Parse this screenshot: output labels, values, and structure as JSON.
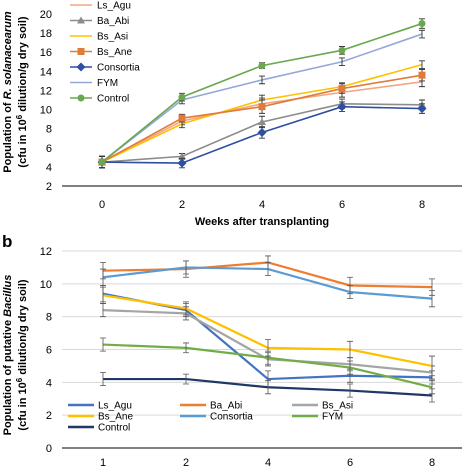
{
  "chart_data": [
    {
      "type": "line",
      "panel": "",
      "xlabel": "Weeks after transplanting",
      "ylabel_line1_pre": "Population of ",
      "ylabel_line1_ital": "R. solanacearum",
      "ylabel_line2_pre": "(cfu in 10",
      "ylabel_line2_sup": "6",
      "ylabel_line2_post": " dilution/g dry soil)",
      "x": [
        0,
        2,
        4,
        6,
        8
      ],
      "xticks": [
        "0",
        "2",
        "4",
        "6",
        "8"
      ],
      "xlim": [
        -1,
        9
      ],
      "ylim": [
        2,
        20
      ],
      "yticks": [
        "2",
        "4",
        "6",
        "8",
        "10",
        "12",
        "14",
        "16",
        "18",
        "20"
      ],
      "legend_position": "top-left",
      "series": [
        {
          "name": "Ls_Agu",
          "color": "#f4a582",
          "marker": "none",
          "values": [
            4.5,
            8.8,
            10.6,
            11.8,
            12.9
          ],
          "err": [
            0.6,
            0.4,
            0.6,
            0.5,
            0.5
          ]
        },
        {
          "name": "Ba_Abi",
          "color": "#8c8c8c",
          "marker": "triangle",
          "values": [
            4.5,
            5.1,
            8.7,
            10.6,
            10.5
          ],
          "err": [
            0.6,
            0.3,
            0.6,
            0.5,
            0.5
          ]
        },
        {
          "name": "Bs_Asi",
          "color": "#ffc000",
          "marker": "none",
          "values": [
            4.5,
            8.5,
            11.0,
            12.4,
            14.7
          ],
          "err": [
            0.6,
            0.4,
            0.5,
            0.4,
            0.4
          ]
        },
        {
          "name": "Bs_Ane",
          "color": "#e07b39",
          "marker": "square",
          "values": [
            4.5,
            9.1,
            10.3,
            12.2,
            13.6
          ],
          "err": [
            0.6,
            0.4,
            0.7,
            0.5,
            0.6
          ]
        },
        {
          "name": "Consortia",
          "color": "#2e4fa3",
          "marker": "diamond",
          "values": [
            4.5,
            4.4,
            7.6,
            10.3,
            10.1
          ],
          "err": [
            0.6,
            0.5,
            0.6,
            0.5,
            0.5
          ]
        },
        {
          "name": "FYM",
          "color": "#95a8d8",
          "marker": "none",
          "values": [
            4.5,
            11.0,
            13.1,
            15.0,
            17.9
          ],
          "err": [
            0.6,
            0.4,
            0.4,
            0.4,
            0.4
          ]
        },
        {
          "name": "Control",
          "color": "#6aa84f",
          "marker": "circle",
          "values": [
            4.5,
            11.3,
            14.6,
            16.2,
            19.0
          ],
          "err": [
            0.6,
            0.4,
            0.3,
            0.4,
            0.5
          ]
        }
      ]
    },
    {
      "type": "line",
      "panel": "b",
      "xlabel": "",
      "ylabel_line1_pre": "Population of putative ",
      "ylabel_line1_ital": "Bacillus",
      "ylabel_line2_pre": "(cfu in 10",
      "ylabel_line2_sup": "6",
      "ylabel_line2_post": " dilution/g dry soil)",
      "x": [
        1,
        2,
        4,
        6,
        8
      ],
      "xticks": [
        "1",
        "2",
        "4",
        "6",
        "8"
      ],
      "ylim": [
        0,
        12
      ],
      "yticks": [
        "0",
        "2",
        "4",
        "6",
        "8",
        "10",
        "12"
      ],
      "legend_position": "bottom-left",
      "series": [
        {
          "name": "Ls_Agu",
          "color": "#4472c4",
          "values": [
            9.4,
            8.4,
            4.2,
            4.4,
            4.3
          ],
          "err": [
            0.5,
            0.4,
            0.5,
            0.4,
            0.4
          ]
        },
        {
          "name": "Ba_Abi",
          "color": "#ed7d31",
          "values": [
            10.8,
            10.9,
            11.3,
            9.9,
            9.8
          ],
          "err": [
            0.5,
            0.5,
            0.4,
            0.5,
            0.5
          ]
        },
        {
          "name": "Bs_Asi",
          "color": "#a5a5a5",
          "values": [
            8.4,
            8.2,
            5.4,
            5.1,
            4.6
          ],
          "err": [
            0.4,
            0.4,
            0.4,
            0.4,
            0.4
          ]
        },
        {
          "name": "Bs_Ane",
          "color": "#ffc000",
          "values": [
            9.3,
            8.5,
            6.1,
            6.0,
            5.0
          ],
          "err": [
            0.5,
            0.4,
            0.5,
            0.5,
            0.6
          ]
        },
        {
          "name": "Consortia",
          "color": "#5b9bd5",
          "values": [
            10.4,
            11.0,
            10.9,
            9.5,
            9.1
          ],
          "err": [
            0.5,
            0.4,
            0.4,
            0.4,
            0.5
          ]
        },
        {
          "name": "FYM",
          "color": "#70ad47",
          "values": [
            6.3,
            6.1,
            5.5,
            4.9,
            3.7
          ],
          "err": [
            0.4,
            0.3,
            0.4,
            0.4,
            0.4
          ]
        },
        {
          "name": "Control",
          "color": "#203864",
          "values": [
            4.2,
            4.2,
            3.7,
            3.5,
            3.2
          ],
          "err": [
            0.4,
            0.3,
            0.4,
            0.4,
            0.4
          ]
        }
      ]
    }
  ]
}
